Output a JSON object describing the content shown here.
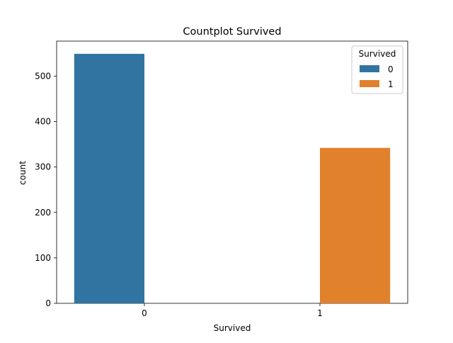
{
  "chart_data": {
    "type": "bar",
    "title": "Countplot Survived",
    "xlabel": "Survived",
    "ylabel": "count",
    "categories": [
      "0",
      "1"
    ],
    "series": [
      {
        "name": "0",
        "values": [
          549,
          0
        ],
        "color": "#3274a1"
      },
      {
        "name": "1",
        "values": [
          0,
          342
        ],
        "color": "#e1812c"
      }
    ],
    "ylim": [
      0,
      577
    ],
    "yticks": [
      0,
      100,
      200,
      300,
      400,
      500
    ],
    "legend": {
      "title": "Survived",
      "placement": "top-right"
    },
    "grid": false
  }
}
